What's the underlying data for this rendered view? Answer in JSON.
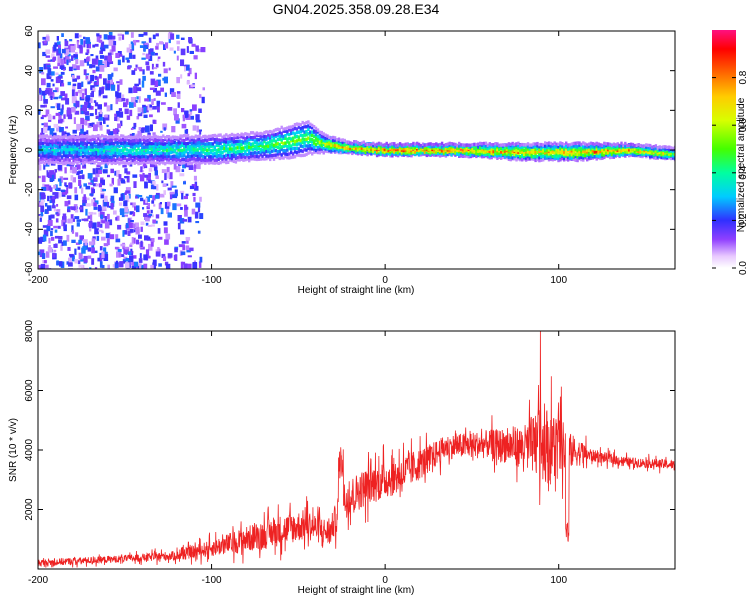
{
  "chart_data": [
    {
      "type": "heatmap",
      "title": "GN04.2025.358.09.28.E34",
      "xlabel": "Height of straight line (km)",
      "ylabel": "Frequency (Hz)",
      "xlim": [
        -200,
        167
      ],
      "ylim": [
        -60,
        60
      ],
      "x_ticks": [
        -200,
        -100,
        0,
        100
      ],
      "y_ticks": [
        -60,
        -40,
        -20,
        0,
        20,
        40,
        60
      ],
      "colorbar": {
        "label": "Normalized spectral amplitude",
        "ticks": [
          "0.0",
          "0.2",
          "0.4",
          "0.6",
          "0.8"
        ],
        "range": [
          0,
          1
        ]
      },
      "ridge": {
        "description": "dominant frequency band",
        "x": [
          -200,
          -150,
          -100,
          -70,
          -55,
          -45,
          -35,
          -20,
          0,
          40,
          80,
          110,
          140,
          167
        ],
        "center_hz": [
          0,
          0,
          0,
          2,
          4,
          6,
          3,
          1,
          0,
          0,
          -1,
          -1,
          0,
          -2
        ],
        "halfwidth_hz": [
          5,
          5,
          5,
          5,
          6,
          6,
          3,
          2,
          2,
          2,
          3,
          3,
          2,
          2
        ],
        "peak_amplitude": [
          0.35,
          0.4,
          0.45,
          0.5,
          0.55,
          0.55,
          0.65,
          0.8,
          0.9,
          0.9,
          0.75,
          0.8,
          0.85,
          0.6
        ]
      },
      "scatter_region": {
        "x_range": [
          -200,
          -105
        ],
        "amplitude_range": [
          0.05,
          0.25
        ]
      }
    },
    {
      "type": "line",
      "xlabel": "Height of straight line (km)",
      "ylabel": "SNR (10 * v/v)",
      "xlim": [
        -200,
        167
      ],
      "ylim": [
        0,
        8000
      ],
      "x_ticks": [
        -200,
        -100,
        0,
        100
      ],
      "y_ticks": [
        2000,
        4000,
        6000,
        8000
      ],
      "series": [
        {
          "name": "SNR",
          "color": "#ee2222",
          "x": [
            -200,
            -150,
            -120,
            -100,
            -80,
            -60,
            -45,
            -32,
            -24,
            -10,
            10,
            25,
            35,
            60,
            80,
            90,
            95,
            100,
            105,
            120,
            140,
            167
          ],
          "mean": [
            200,
            350,
            450,
            700,
            1000,
            1300,
            1500,
            1200,
            2300,
            2800,
            3200,
            3700,
            4100,
            4200,
            4100,
            4300,
            4100,
            4100,
            4000,
            3800,
            3600,
            3500
          ],
          "noise": [
            150,
            150,
            200,
            350,
            550,
            650,
            650,
            550,
            800,
            800,
            800,
            600,
            500,
            600,
            900,
            1600,
            1600,
            1500,
            800,
            250,
            200,
            200
          ]
        }
      ]
    }
  ]
}
